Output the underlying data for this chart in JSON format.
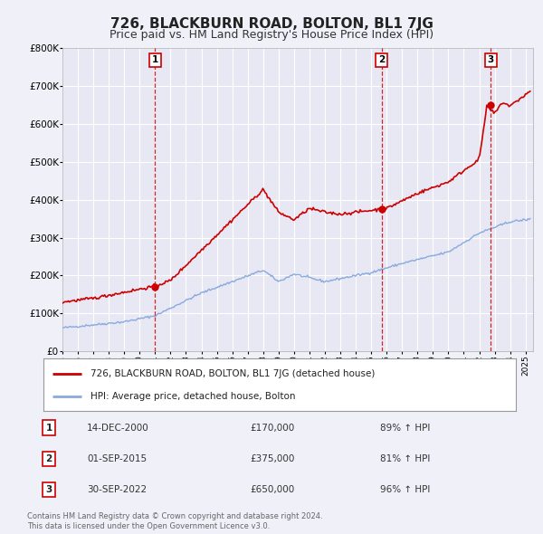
{
  "title": "726, BLACKBURN ROAD, BOLTON, BL1 7JG",
  "subtitle": "Price paid vs. HM Land Registry's House Price Index (HPI)",
  "title_fontsize": 11,
  "subtitle_fontsize": 9,
  "ylim": [
    0,
    800000
  ],
  "yticks": [
    0,
    100000,
    200000,
    300000,
    400000,
    500000,
    600000,
    700000,
    800000
  ],
  "ytick_labels": [
    "£0",
    "£100K",
    "£200K",
    "£300K",
    "£400K",
    "£500K",
    "£600K",
    "£700K",
    "£800K"
  ],
  "xlim_start": 1995.0,
  "xlim_end": 2025.5,
  "background_color": "#f0f0f8",
  "plot_bg_color": "#e8e8f4",
  "grid_color": "#ffffff",
  "red_line_color": "#cc0000",
  "blue_line_color": "#88aadd",
  "sale_marker_color": "#cc0000",
  "vline_color": "#cc0000",
  "annotation_box_color": "#cc0000",
  "purchases": [
    {
      "date_year": 2001.0,
      "price": 170000,
      "label": "1"
    },
    {
      "date_year": 2015.67,
      "price": 375000,
      "label": "2"
    },
    {
      "date_year": 2022.75,
      "price": 650000,
      "label": "3"
    }
  ],
  "legend_line1": "726, BLACKBURN ROAD, BOLTON, BL1 7JG (detached house)",
  "legend_line2": "HPI: Average price, detached house, Bolton",
  "table_rows": [
    {
      "num": "1",
      "date": "14-DEC-2000",
      "price": "£170,000",
      "pct": "89% ↑ HPI"
    },
    {
      "num": "2",
      "date": "01-SEP-2015",
      "price": "£375,000",
      "pct": "81% ↑ HPI"
    },
    {
      "num": "3",
      "date": "30-SEP-2022",
      "price": "£650,000",
      "pct": "96% ↑ HPI"
    }
  ],
  "footer_line1": "Contains HM Land Registry data © Crown copyright and database right 2024.",
  "footer_line2": "This data is licensed under the Open Government Licence v3.0."
}
